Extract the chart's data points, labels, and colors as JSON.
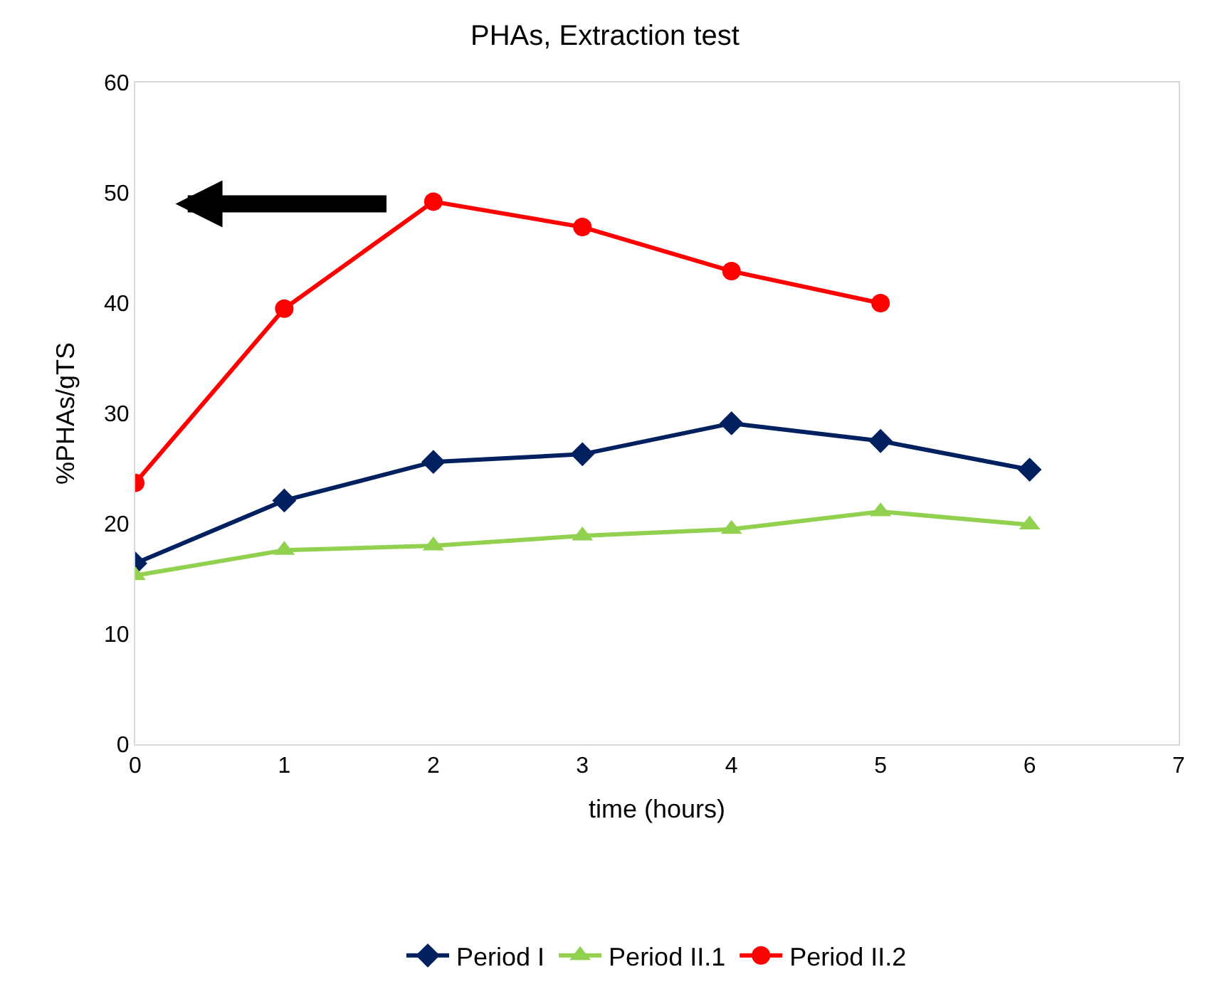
{
  "chart_data": {
    "type": "line",
    "title": "PHAs, Extraction test",
    "xlabel": "time (hours)",
    "ylabel": "%PHAs/gTS",
    "xlim": [
      0,
      7
    ],
    "xticks": [
      0,
      1,
      2,
      3,
      4,
      5,
      6,
      7
    ],
    "ylim": [
      0,
      60
    ],
    "yticks": [
      0,
      10,
      20,
      30,
      40,
      50,
      60
    ],
    "legend": "bottom",
    "line_style": "solid",
    "series": [
      {
        "name": "Period I",
        "color": "#002060",
        "marker": "diamond",
        "x": [
          0,
          1,
          2,
          3,
          4,
          5,
          6
        ],
        "values": [
          16.4,
          22.1,
          25.6,
          26.3,
          29.1,
          27.5,
          24.9
        ]
      },
      {
        "name": "Period II.1",
        "color": "#92d050",
        "marker": "triangle",
        "x": [
          0,
          1,
          2,
          3,
          4,
          5,
          6
        ],
        "values": [
          15.3,
          17.6,
          18.0,
          18.9,
          19.5,
          21.1,
          19.9
        ]
      },
      {
        "name": "Period II.2",
        "color": "#ff0000",
        "marker": "circle",
        "x": [
          0,
          1,
          2,
          3,
          4,
          5
        ],
        "values": [
          23.7,
          39.5,
          49.2,
          46.9,
          42.9,
          40.0
        ]
      }
    ]
  }
}
